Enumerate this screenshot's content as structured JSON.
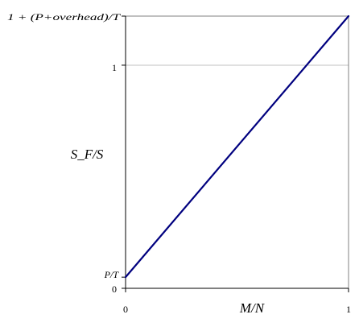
{
  "chart_data": {
    "type": "line",
    "title": "",
    "xlabel": "M/N",
    "ylabel": "S_F/S",
    "xlim": [
      0,
      1
    ],
    "ylim": [
      0,
      1.22
    ],
    "x_ticks": [
      {
        "value": 0,
        "label": "0"
      },
      {
        "value": 1,
        "label": "1"
      }
    ],
    "y_ticks": [
      {
        "value": 0,
        "label": "0"
      },
      {
        "value": 0.05,
        "label": "P/T"
      },
      {
        "value": 1,
        "label": "1"
      },
      {
        "value": 1.22,
        "label": "1 + (P+overhead)/T"
      }
    ],
    "grid": "horizontal",
    "legend": "none",
    "series": [
      {
        "color": "#00007f",
        "x": [
          0,
          1
        ],
        "y": [
          0.05,
          1.22
        ]
      }
    ],
    "colors": {
      "line": "#00007f",
      "axis": "#808080",
      "grid": "#c0c0c0"
    }
  }
}
